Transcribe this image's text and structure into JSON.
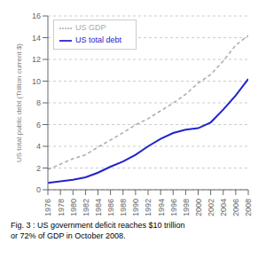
{
  "chart_data": {
    "type": "line",
    "x": [
      1976,
      1978,
      1980,
      1982,
      1984,
      1986,
      1988,
      1990,
      1992,
      1994,
      1996,
      1998,
      2000,
      2002,
      2004,
      2006,
      2008
    ],
    "series": [
      {
        "name": "US total debt",
        "color": "#2222cc",
        "line_style": "solid",
        "values": [
          0.63,
          0.77,
          0.91,
          1.14,
          1.57,
          2.12,
          2.6,
          3.21,
          4.0,
          4.69,
          5.22,
          5.53,
          5.67,
          6.2,
          7.38,
          8.68,
          10.2
        ]
      },
      {
        "name": "US GDP",
        "color": "#aaaaaa",
        "line_style": "dashed",
        "values": [
          1.87,
          2.35,
          2.86,
          3.21,
          3.93,
          4.58,
          5.25,
          5.98,
          6.54,
          7.27,
          7.97,
          8.79,
          9.82,
          10.6,
          11.85,
          13.31,
          14.2
        ]
      }
    ],
    "ylabel": "US total public debt (Trillion current $)",
    "xlim": [
      1976,
      2008
    ],
    "xticks": [
      1976,
      1978,
      1980,
      1982,
      1984,
      1986,
      1988,
      1990,
      1992,
      1994,
      1996,
      1998,
      2000,
      2002,
      2004,
      2006,
      2008
    ],
    "ylim": [
      0,
      16
    ],
    "yticks": [
      0,
      2,
      4,
      6,
      8,
      10,
      12,
      14,
      16
    ],
    "grid": true,
    "legend": "upper left",
    "annotations": [
      "Fig. 3 : US government deficit reaches $10 trillion",
      "or 72% of GDP in October 2008."
    ]
  }
}
